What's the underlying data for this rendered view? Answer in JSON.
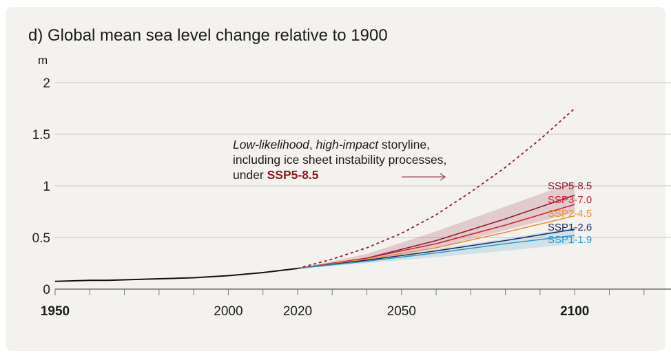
{
  "chart_data": {
    "type": "line",
    "title": "d) Global mean sea level change relative to 1900",
    "ylabel": "m",
    "xlim": [
      1950,
      2128
    ],
    "ylim": [
      0,
      2
    ],
    "x_ticks": [
      {
        "label": "1950",
        "value": 1950,
        "bold": true
      },
      {
        "label": "2000",
        "value": 2000,
        "bold": false
      },
      {
        "label": "2020",
        "value": 2020,
        "bold": false
      },
      {
        "label": "2050",
        "value": 2050,
        "bold": false
      },
      {
        "label": "2100",
        "value": 2100,
        "bold": true
      }
    ],
    "y_ticks": [
      {
        "label": "0",
        "value": 0
      },
      {
        "label": "0.5",
        "value": 0.5
      },
      {
        "label": "1",
        "value": 1
      },
      {
        "label": "1.5",
        "value": 1.5
      },
      {
        "label": "2",
        "value": 2
      }
    ],
    "grid": true,
    "historical": {
      "color": "#111111",
      "x": [
        1950,
        1955,
        1960,
        1965,
        1970,
        1975,
        1980,
        1985,
        1990,
        1995,
        2000,
        2005,
        2010,
        2015,
        2020
      ],
      "y": [
        0.075,
        0.08,
        0.085,
        0.085,
        0.09,
        0.095,
        0.1,
        0.105,
        0.11,
        0.12,
        0.13,
        0.145,
        0.16,
        0.18,
        0.2
      ]
    },
    "series": [
      {
        "name": "SSP5-8.5",
        "color": "#8b1a2b",
        "x": [
          2020,
          2040,
          2060,
          2080,
          2100
        ],
        "y": [
          0.2,
          0.3,
          0.47,
          0.68,
          0.91
        ],
        "range_low": [
          0.2,
          0.27,
          0.4,
          0.57,
          0.74
        ],
        "range_high": [
          0.2,
          0.34,
          0.56,
          0.8,
          1.04
        ]
      },
      {
        "name": "SSP3-7.0",
        "color": "#d42232",
        "x": [
          2020,
          2040,
          2060,
          2080,
          2100
        ],
        "y": [
          0.2,
          0.3,
          0.44,
          0.62,
          0.82
        ]
      },
      {
        "name": "SSP2-4.5",
        "color": "#e99033",
        "x": [
          2020,
          2040,
          2060,
          2080,
          2100
        ],
        "y": [
          0.2,
          0.29,
          0.4,
          0.55,
          0.71
        ]
      },
      {
        "name": "SSP1-2.6",
        "color": "#1d2a5c",
        "x": [
          2020,
          2040,
          2060,
          2080,
          2100
        ],
        "y": [
          0.2,
          0.28,
          0.37,
          0.47,
          0.58
        ]
      },
      {
        "name": "SSP1-1.9",
        "color": "#2b9ac9",
        "x": [
          2020,
          2040,
          2060,
          2080,
          2100
        ],
        "y": [
          0.2,
          0.27,
          0.35,
          0.44,
          0.52
        ],
        "range_low": [
          0.2,
          0.25,
          0.31,
          0.37,
          0.44
        ],
        "range_high": [
          0.2,
          0.29,
          0.39,
          0.49,
          0.6
        ]
      }
    ],
    "storyline": {
      "color": "#8b1a2b",
      "style": "dotted",
      "x": [
        2020,
        2030,
        2040,
        2050,
        2060,
        2070,
        2080,
        2090,
        2100
      ],
      "y": [
        0.2,
        0.29,
        0.4,
        0.54,
        0.72,
        0.94,
        1.18,
        1.45,
        1.75
      ]
    },
    "annotation": {
      "part1": "Low-likelihood",
      "part2": ", ",
      "part3": "high-impact",
      "part4": " storyline, including ice sheet instability processes, under ",
      "ssp": "SSP5-8.5"
    }
  }
}
